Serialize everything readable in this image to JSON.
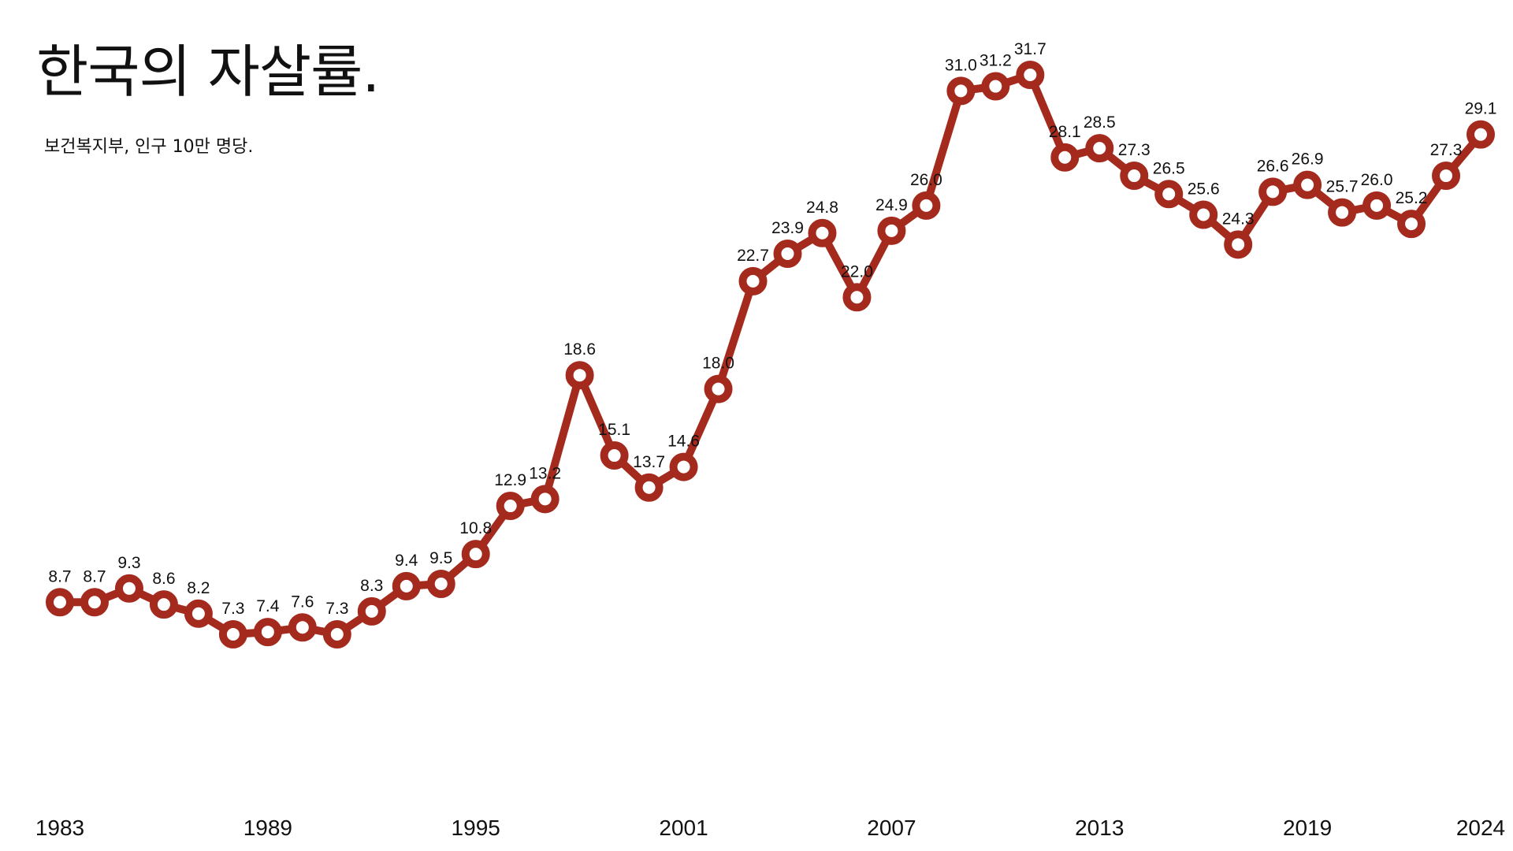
{
  "chart_data": {
    "type": "line",
    "title": "한국의 자살률.",
    "subtitle": "보건복지부, 인구 10만 명당.",
    "x": [
      1983,
      1984,
      1985,
      1986,
      1987,
      1988,
      1989,
      1990,
      1991,
      1992,
      1993,
      1994,
      1995,
      1996,
      1997,
      1998,
      1999,
      2000,
      2001,
      2002,
      2003,
      2004,
      2005,
      2006,
      2007,
      2008,
      2009,
      2010,
      2011,
      2012,
      2013,
      2014,
      2015,
      2016,
      2017,
      2018,
      2019,
      2020,
      2021,
      2022,
      2023,
      2024
    ],
    "series": [
      {
        "values": [
          8.7,
          8.7,
          9.3,
          8.6,
          8.2,
          7.3,
          7.4,
          7.6,
          7.3,
          8.3,
          9.4,
          9.5,
          10.8,
          12.9,
          13.2,
          18.6,
          15.1,
          13.7,
          14.6,
          18.0,
          22.7,
          23.9,
          24.8,
          22.0,
          24.9,
          26.0,
          31.0,
          31.2,
          31.7,
          28.1,
          28.5,
          27.3,
          26.5,
          25.6,
          24.3,
          26.6,
          26.9,
          25.7,
          26.0,
          25.2,
          27.3,
          29.1
        ],
        "labels": [
          "8.7",
          "8.7",
          "9.3",
          "8.6",
          "8.2",
          "7.3",
          "7.4",
          "7.6",
          "7.3",
          "8.3",
          "9.4",
          "9.5",
          "10.8",
          "12.9",
          "13.2",
          "18.6",
          "15.1",
          "13.7",
          "14.6",
          "18.0",
          "22.7",
          "23.9",
          "24.8",
          "22.0",
          "24.9",
          "26.0",
          "31.0",
          "31.2",
          "31.7",
          "28.1",
          "28.5",
          "27.3",
          "26.5",
          "25.6",
          "24.3",
          "26.6",
          "26.9",
          "25.7",
          "26.0",
          "25.2",
          "27.3",
          "29.1"
        ]
      }
    ],
    "x_ticks": [
      "1983",
      "1989",
      "1995",
      "2001",
      "2007",
      "2013",
      "2019",
      "2024"
    ],
    "xlabel": "",
    "ylabel": "",
    "y_axis_visible": false,
    "grid": false,
    "legend": "none",
    "line_color": "#a52a1e",
    "marker_fill": "#ffffff"
  }
}
